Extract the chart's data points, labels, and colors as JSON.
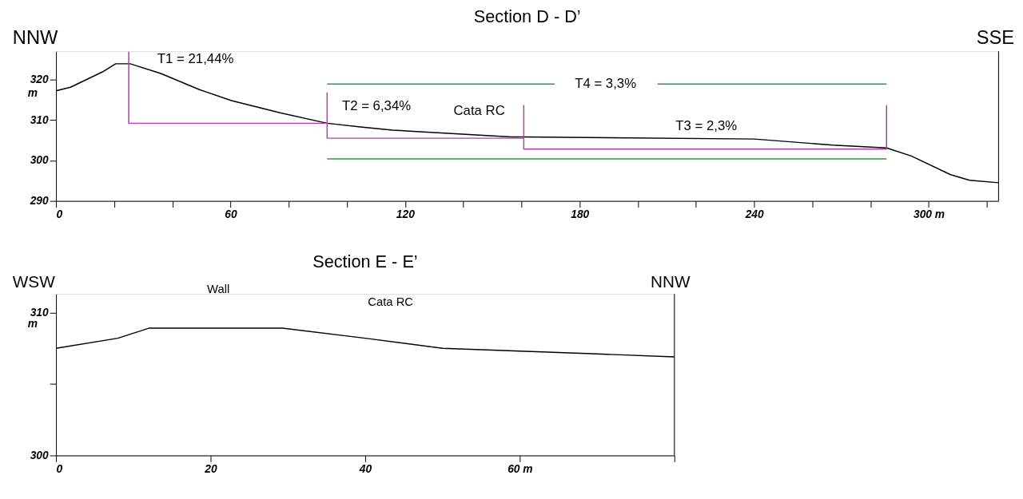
{
  "chart_data": [
    {
      "type": "line",
      "title": "Section D - D’",
      "ylabel": "m",
      "xlim": [
        0,
        324
      ],
      "ylim": [
        290,
        327
      ],
      "xticks": [
        0,
        {
          "value": 20,
          "label": null
        },
        {
          "value": 40,
          "label": null
        },
        60,
        {
          "value": 80,
          "label": null
        },
        {
          "value": 100,
          "label": null
        },
        120,
        {
          "value": 140,
          "label": null
        },
        {
          "value": 160,
          "label": null
        },
        180,
        {
          "value": 200,
          "label": null
        },
        {
          "value": 220,
          "label": null
        },
        240,
        {
          "value": 260,
          "label": null
        },
        {
          "value": 280,
          "label": null
        },
        {
          "value": 300,
          "label": "300 m"
        },
        {
          "value": 320,
          "label": null
        }
      ],
      "yticks": [
        290,
        300,
        310,
        320
      ],
      "grid": false,
      "legend": false,
      "series": [
        {
          "color": "#000000",
          "x": [
            0,
            5,
            16,
            20.5,
            25.5,
            36,
            49.3,
            60.3,
            77,
            93.2,
            104.6,
            115.7,
            156.5,
            160.8,
            240,
            267,
            285.5,
            294,
            307.5,
            314,
            324
          ],
          "values": [
            317.2,
            318.1,
            321.9,
            323.9,
            323.9,
            321.5,
            317.5,
            314.8,
            311.8,
            309.2,
            308.3,
            307.5,
            305.8,
            305.8,
            305.3,
            303.8,
            303.1,
            301.1,
            296.5,
            295.1,
            294.5
          ]
        },
        {
          "color": "#b040b0",
          "x": [
            25,
            25,
            93.2
          ],
          "values": [
            326.9,
            309.2,
            309.2
          ]
        },
        {
          "color": "#b040b0",
          "x": [
            93.2,
            93.2,
            160.8
          ],
          "values": [
            316.8,
            305.5,
            305.5
          ]
        },
        {
          "color": "#b040b0",
          "x": [
            160.8,
            160.8,
            285.5,
            285.5
          ],
          "values": [
            313.7,
            302.8,
            302.8,
            313.7
          ]
        },
        {
          "color": "#20a040",
          "x": [
            93.2,
            285.5
          ],
          "values": [
            300.4,
            300.4
          ]
        },
        {
          "color": "#20a040",
          "x": [
            93.2,
            171.4
          ],
          "values": [
            318.9,
            318.9
          ]
        },
        {
          "color": "#20a040",
          "x": [
            206.8,
            285.5
          ],
          "values": [
            318.9,
            318.9
          ]
        }
      ],
      "annotations": [
        "NNW",
        "SSE",
        "T1 = 21,44%",
        "T2 = 6,34%",
        "T3 = 2,3%",
        "T4 = 3,3%",
        "Cata RC"
      ]
    },
    {
      "type": "line",
      "title": "Section E - E’",
      "ylabel": "m",
      "xlim": [
        0,
        80
      ],
      "ylim": [
        300,
        311.3
      ],
      "xticks": [
        0,
        20,
        40,
        {
          "value": 60,
          "label": "60 m"
        },
        {
          "value": 80,
          "label": null
        }
      ],
      "yticks": [
        300,
        {
          "value": 305,
          "label": null
        },
        310
      ],
      "grid": false,
      "legend": false,
      "series": [
        {
          "color": "#000000",
          "x": [
            0,
            8,
            12,
            29.3,
            40,
            50,
            60,
            70,
            80
          ],
          "values": [
            307.5,
            308.2,
            308.9,
            308.9,
            308.2,
            307.5,
            307.3,
            307.1,
            306.9
          ]
        }
      ],
      "annotations": [
        "WSW",
        "NNW",
        "Wall",
        "Cata RC"
      ]
    }
  ]
}
